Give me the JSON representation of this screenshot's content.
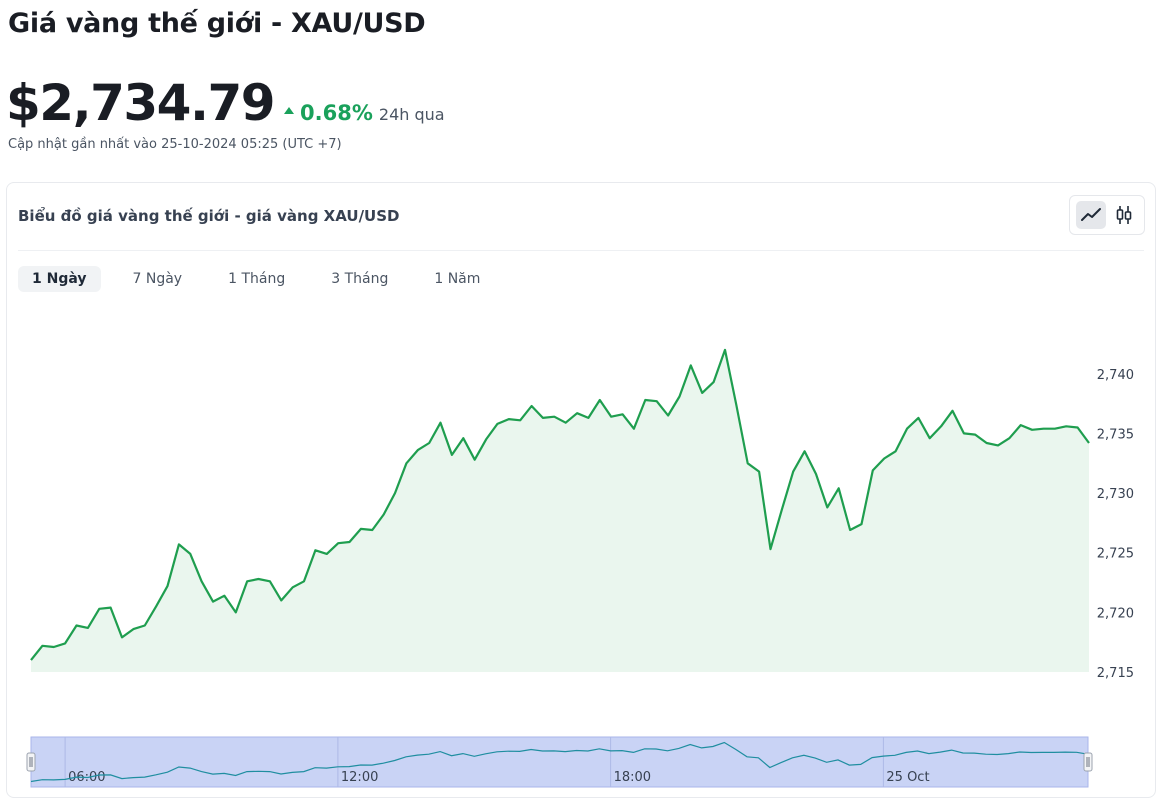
{
  "page": {
    "title": "Giá vàng thế giới - XAU/USD",
    "price": "$2,734.79",
    "change_pct": "0.68%",
    "change_period": "24h qua",
    "updated": "Cập nhật gần nhất vào 25-10-2024 05:25 (UTC +7)"
  },
  "card": {
    "title": "Biểu đồ giá vàng thế giới - giá vàng XAU/USD",
    "toggle_icons": [
      "line-chart-icon",
      "candlestick-icon"
    ],
    "tabs": [
      {
        "label": "1 Ngày",
        "active": true
      },
      {
        "label": "7 Ngày",
        "active": false
      },
      {
        "label": "1 Tháng",
        "active": false
      },
      {
        "label": "3 Tháng",
        "active": false
      },
      {
        "label": "1 Năm",
        "active": false
      }
    ]
  },
  "colors": {
    "up": "#1aa15b",
    "line": "#1f9e4f",
    "area": "#eaf6ee",
    "navigator_fill": "#c9d3f5",
    "navigator_border": "#a9b6ea"
  },
  "chart_data": {
    "type": "area",
    "series": [
      {
        "values": [
          2716.0,
          2717.2,
          2717.1,
          2717.4,
          2718.9,
          2718.7,
          2720.3,
          2720.4,
          2717.9,
          2718.6,
          2718.9,
          2720.5,
          2722.2,
          2725.7,
          2724.9,
          2722.6,
          2720.9,
          2721.4,
          2720.0,
          2722.6,
          2722.8,
          2722.6,
          2721.0,
          2722.1,
          2722.6,
          2725.2,
          2724.9,
          2725.8,
          2725.9,
          2727.0,
          2726.9,
          2728.2,
          2730.0,
          2732.5,
          2733.6,
          2734.2,
          2735.9,
          2733.2,
          2734.6,
          2732.8,
          2734.5,
          2735.8,
          2736.2,
          2736.1,
          2737.3,
          2736.3,
          2736.4,
          2735.9,
          2736.7,
          2736.3,
          2737.8,
          2736.4,
          2736.6,
          2735.4,
          2737.8,
          2737.7,
          2736.5,
          2738.1,
          2740.7,
          2738.4,
          2739.3,
          2742.0,
          2737.4,
          2732.5,
          2731.8,
          2725.3,
          2728.6,
          2731.8,
          2733.5,
          2731.6,
          2728.8,
          2730.4,
          2726.9,
          2727.4,
          2731.9,
          2732.9,
          2733.5,
          2735.4,
          2736.3,
          2734.6,
          2735.6,
          2736.9,
          2735.0,
          2734.9,
          2734.2,
          2734.0,
          2734.6,
          2735.7,
          2735.3,
          2735.4,
          2735.4,
          2735.6,
          2735.5,
          2734.2
        ]
      }
    ],
    "ylim": [
      2715,
      2743
    ],
    "yticks": [
      "2,715",
      "2,720",
      "2,725",
      "2,730",
      "2,735",
      "2,740"
    ],
    "ytick_values": [
      2715,
      2720,
      2725,
      2730,
      2735,
      2740
    ],
    "navigator_labels": [
      "06:00",
      "12:00",
      "18:00",
      "25 Oct"
    ],
    "navigator_label_indices": [
      3,
      27,
      51,
      75
    ],
    "grid": false,
    "legend": "none"
  }
}
